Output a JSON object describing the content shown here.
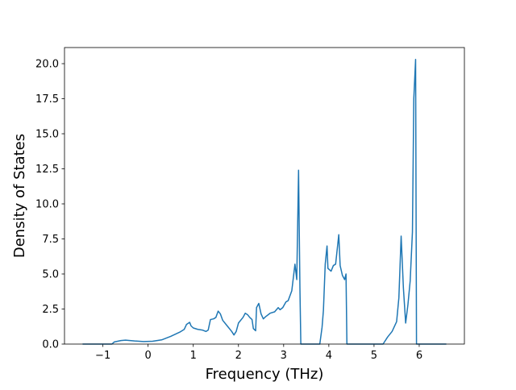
{
  "chart_data": {
    "type": "line",
    "xlabel": "Frequency (THz)",
    "ylabel": "Density of States",
    "xlim": [
      -1.85,
      7.0
    ],
    "ylim": [
      0,
      21.15
    ],
    "xticks": [
      {
        "value": -1,
        "label": "−1"
      },
      0,
      1,
      2,
      3,
      4,
      5,
      6
    ],
    "yticks": [
      {
        "value": 0,
        "label": "0.0"
      },
      {
        "value": 2.5,
        "label": "2.5"
      },
      {
        "value": 5,
        "label": "5.0"
      },
      {
        "value": 7.5,
        "label": "7.5"
      },
      {
        "value": 10,
        "label": "10.0"
      },
      {
        "value": 12.5,
        "label": "12.5"
      },
      {
        "value": 15,
        "label": "15.0"
      },
      {
        "value": 17.5,
        "label": "17.5"
      },
      {
        "value": 20,
        "label": "20.0"
      }
    ],
    "color": "#1f77b4",
    "x": [
      -1.45,
      -0.8,
      -0.75,
      -0.6,
      -0.5,
      -0.3,
      -0.1,
      0.1,
      0.3,
      0.5,
      0.7,
      0.8,
      0.85,
      0.92,
      0.95,
      1.0,
      1.1,
      1.2,
      1.28,
      1.33,
      1.38,
      1.45,
      1.5,
      1.55,
      1.6,
      1.65,
      1.75,
      1.85,
      1.9,
      1.95,
      2.0,
      2.1,
      2.15,
      2.2,
      2.25,
      2.3,
      2.33,
      2.38,
      2.4,
      2.45,
      2.5,
      2.55,
      2.6,
      2.7,
      2.8,
      2.88,
      2.92,
      2.98,
      3.05,
      3.1,
      3.18,
      3.25,
      3.29,
      3.33,
      3.36,
      3.38,
      3.8,
      3.85,
      3.88,
      3.92,
      3.96,
      3.98,
      4.05,
      4.1,
      4.15,
      4.22,
      4.25,
      4.3,
      4.35,
      4.38,
      4.4,
      5.2,
      5.3,
      5.4,
      5.5,
      5.55,
      5.6,
      5.65,
      5.7,
      5.75,
      5.8,
      5.85,
      5.88,
      5.92,
      5.94,
      6.6
    ],
    "values": [
      0,
      0,
      0.15,
      0.25,
      0.28,
      0.22,
      0.18,
      0.2,
      0.3,
      0.55,
      0.85,
      1.05,
      1.4,
      1.55,
      1.3,
      1.15,
      1.05,
      1.0,
      0.9,
      1.0,
      1.75,
      1.8,
      1.9,
      2.35,
      2.15,
      1.7,
      1.3,
      0.9,
      0.65,
      0.9,
      1.5,
      1.9,
      2.2,
      2.1,
      1.9,
      1.75,
      1.1,
      0.95,
      2.6,
      2.9,
      2.15,
      1.8,
      1.95,
      2.2,
      2.3,
      2.6,
      2.45,
      2.6,
      3.0,
      3.1,
      3.8,
      5.7,
      4.6,
      12.4,
      4.0,
      0,
      0,
      1.2,
      2.4,
      5.7,
      7.0,
      5.4,
      5.2,
      5.6,
      5.7,
      7.8,
      5.6,
      4.9,
      4.6,
      5.0,
      0,
      0,
      0.5,
      0.9,
      1.6,
      3.3,
      7.7,
      4.0,
      1.5,
      2.8,
      4.5,
      8.0,
      17.5,
      20.3,
      0,
      0
    ]
  }
}
